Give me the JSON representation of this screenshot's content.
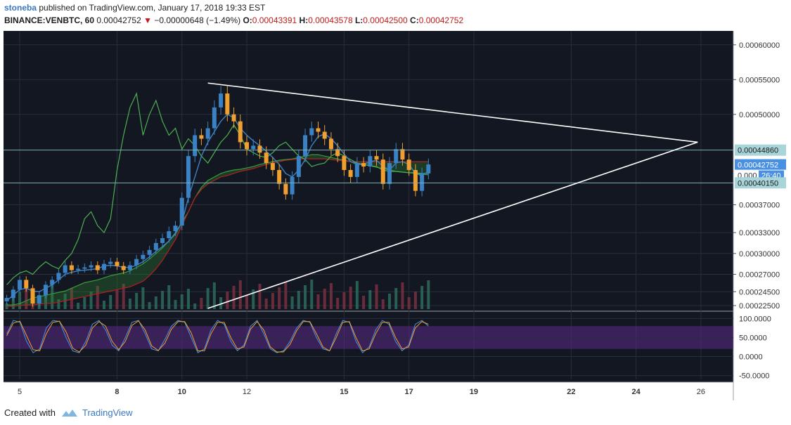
{
  "header": {
    "author": "stoneba",
    "published_text": "published on TradingView.com, January 17, 2018 19:33 EST",
    "symbol": "BINANCE:VENBTC, 60",
    "last": "0.00042752",
    "change": "−0.00000648 (−1.49%)",
    "o_label": "O:",
    "o_value": "0.00043391",
    "h_label": "H:",
    "h_value": "0.00043578",
    "l_label": "L:",
    "l_value": "0.00042500",
    "c_label": "C:",
    "c_value": "0.00042752"
  },
  "footer": {
    "created_with": "Created with",
    "brand": "TradingView"
  },
  "colors": {
    "background": "#131722",
    "grid": "#2a2e39",
    "candle_up": "#3b82c4",
    "candle_down": "#f0a030",
    "cloud_green": "#2e7d32",
    "cloud_red": "#8b1a1a",
    "stoch_band": "#5b2a86",
    "trendline": "#ffffff",
    "hline": "#7fb3b8"
  },
  "chart_data": [
    {
      "type": "candlestick",
      "symbol": "BINANCE:VENBTC",
      "interval": "60",
      "y_axis": {
        "ticks": [
          "0.00060000",
          "0.00055000",
          "0.00050000",
          "0.00037000",
          "0.00033000",
          "0.00030000",
          "0.00027000",
          "0.00024500",
          "0.00022500"
        ],
        "tick_values": [
          0.0006,
          0.00055,
          0.0005,
          0.00037,
          0.00033,
          0.0003,
          0.00027,
          0.000245,
          0.000225
        ],
        "ylim": [
          0.00022,
          0.00062
        ]
      },
      "x_axis": {
        "ticks": [
          "5",
          "8",
          "10",
          "12",
          "15",
          "17",
          "19",
          "22",
          "24",
          "26"
        ],
        "bold_ticks": [
          "8",
          "10",
          "15",
          "17",
          "19",
          "22",
          "24"
        ],
        "xlim": [
          4.5,
          27.0
        ]
      },
      "price_labels": [
        {
          "text": "0.00044860",
          "value": 0.0004486,
          "style": "teal"
        },
        {
          "text": "0.00042752",
          "value": 0.00042752,
          "style": "blue"
        },
        {
          "text": "0.000",
          "countdown": "26:40",
          "value": 0.0004123,
          "style": "dark"
        },
        {
          "text": "0.00040150",
          "value": 0.0004015,
          "style": "teal"
        }
      ],
      "horizontal_lines": [
        0.0004486,
        0.0004015
      ],
      "trendlines": [
        {
          "from": [
            10.8,
            0.000545
          ],
          "to": [
            25.9,
            0.00046
          ]
        },
        {
          "from": [
            10.8,
            0.000221
          ],
          "to": [
            25.9,
            0.00046
          ]
        }
      ],
      "close_series": {
        "x": [
          4.6,
          4.8,
          5.0,
          5.2,
          5.4,
          5.6,
          5.8,
          6.0,
          6.2,
          6.4,
          6.6,
          6.8,
          7.0,
          7.2,
          7.4,
          7.6,
          7.8,
          8.0,
          8.2,
          8.4,
          8.6,
          8.8,
          9.0,
          9.2,
          9.4,
          9.6,
          9.8,
          10.0,
          10.2,
          10.4,
          10.6,
          10.8,
          11.0,
          11.2,
          11.4,
          11.6,
          11.8,
          12.0,
          12.2,
          12.4,
          12.6,
          12.8,
          13.0,
          13.2,
          13.4,
          13.6,
          13.8,
          14.0,
          14.2,
          14.4,
          14.6,
          14.8,
          15.0,
          15.2,
          15.4,
          15.6,
          15.8,
          16.0,
          16.2,
          16.4,
          16.6,
          16.8,
          17.0,
          17.2,
          17.4,
          17.6
        ],
        "close": [
          0.000236,
          0.000248,
          0.000262,
          0.00025,
          0.000228,
          0.00024,
          0.000255,
          0.000262,
          0.000272,
          0.000283,
          0.000276,
          0.000278,
          0.00028,
          0.000283,
          0.000276,
          0.000285,
          0.000288,
          0.000282,
          0.000276,
          0.000283,
          0.000292,
          0.000298,
          0.000305,
          0.000315,
          0.000322,
          0.000332,
          0.00034,
          0.00038,
          0.00044,
          0.00047,
          0.000465,
          0.00048,
          0.00051,
          0.00053,
          0.0005,
          0.00049,
          0.00046,
          0.00045,
          0.000455,
          0.000445,
          0.00043,
          0.00042,
          0.0004,
          0.000385,
          0.00041,
          0.00044,
          0.00047,
          0.00048,
          0.000475,
          0.000465,
          0.00045,
          0.00044,
          0.00042,
          0.00041,
          0.00043,
          0.000425,
          0.00044,
          0.000435,
          0.0004,
          0.00043,
          0.00045,
          0.000435,
          0.00042,
          0.00039,
          0.000415,
          0.000428
        ]
      },
      "conversion_line": [
        0.000232,
        0.00024,
        0.000248,
        0.00025,
        0.000246,
        0.000245,
        0.00025,
        0.000255,
        0.000262,
        0.00027,
        0.000273,
        0.000275,
        0.000276,
        0.000277,
        0.000278,
        0.000282,
        0.000283,
        0.000282,
        0.00028,
        0.00028,
        0.000283,
        0.000288,
        0.000295,
        0.000303,
        0.00031,
        0.000318,
        0.000328,
        0.000345,
        0.00038,
        0.00041,
        0.00044,
        0.00046,
        0.000475,
        0.00049,
        0.0005,
        0.000495,
        0.00048,
        0.00047,
        0.000462,
        0.000455,
        0.000447,
        0.000438,
        0.000428,
        0.000415,
        0.00041,
        0.00042,
        0.000435,
        0.000455,
        0.000468,
        0.000472,
        0.000465,
        0.000455,
        0.000443,
        0.000432,
        0.000428,
        0.000428,
        0.000432,
        0.000434,
        0.000425,
        0.00042,
        0.00043,
        0.000432,
        0.000428,
        0.000415,
        0.000412,
        0.000418
      ],
      "lagging_span": [
        0.000255,
        0.000265,
        0.000272,
        0.000275,
        0.00027,
        0.00028,
        0.000288,
        0.000282,
        0.000278,
        0.00029,
        0.0003,
        0.00032,
        0.00035,
        0.00036,
        0.00034,
        0.00033,
        0.00035,
        0.00042,
        0.00047,
        0.00051,
        0.00053,
        0.00047,
        0.0005,
        0.00052,
        0.00049,
        0.00047,
        0.00048,
        0.00045,
        0.000465,
        0.000455,
        0.00044,
        0.00043,
        0.000445,
        0.00046,
        0.00047,
        0.000485,
        0.00047,
        0.00045,
        0.000445,
        0.00044,
        0.000438,
        0.000445,
        0.000455,
        0.00046,
        0.00045,
        0.00044,
        0.000435,
        0.000425,
        0.000428,
        0.00043,
        0.00044,
        0.000445,
        0.00044,
        0.000435,
        0.00043,
        0.000428,
        0.000426,
        0.000425,
        0.00042,
        0.000418,
        0.000418,
        0.000417,
        0.000416,
        0.000416,
        0.000415,
        0.000415
      ],
      "span_a": [
        0.000226,
        0.000226,
        0.000228,
        0.000232,
        0.000236,
        0.000238,
        0.00024,
        0.000242,
        0.000244,
        0.000246,
        0.00025,
        0.000254,
        0.000258,
        0.00026,
        0.000262,
        0.000265,
        0.000268,
        0.00027,
        0.000272,
        0.000275,
        0.00028,
        0.000285,
        0.000292,
        0.0003,
        0.000308,
        0.000318,
        0.00033,
        0.000345,
        0.00036,
        0.00038,
        0.000395,
        0.000405,
        0.00041,
        0.000415,
        0.000418,
        0.00042,
        0.000421,
        0.000423,
        0.000425,
        0.000428,
        0.00043,
        0.000432,
        0.000434,
        0.000435,
        0.000436,
        0.000438,
        0.00044,
        0.000442,
        0.000442,
        0.00044,
        0.000438,
        0.000436,
        0.000434,
        0.000432,
        0.00043,
        0.000428,
        0.000426,
        0.000424,
        0.000422,
        0.00042,
        0.000418,
        0.000417,
        0.000416,
        0.000415,
        0.000414,
        0.000413
      ],
      "span_b": [
        0.000224,
        0.000224,
        0.000225,
        0.000226,
        0.000226,
        0.000227,
        0.000228,
        0.000228,
        0.00023,
        0.000232,
        0.000234,
        0.000236,
        0.000238,
        0.00024,
        0.000242,
        0.000244,
        0.000246,
        0.000248,
        0.00025,
        0.000252,
        0.000256,
        0.00026,
        0.000268,
        0.000278,
        0.00029,
        0.000305,
        0.00032,
        0.00034,
        0.00036,
        0.00038,
        0.000392,
        0.0004,
        0.000405,
        0.00041,
        0.000412,
        0.000415,
        0.000418,
        0.00042,
        0.000422,
        0.000425,
        0.000428,
        0.00043,
        0.000432,
        0.000434,
        0.000435,
        0.000436,
        0.000436,
        0.000436,
        0.000436,
        0.000436,
        0.000435,
        0.000434,
        0.000433,
        0.000432,
        0.000432,
        0.000432,
        0.000432,
        0.000432,
        0.000432,
        0.000432,
        0.000432,
        0.000432,
        0.000432,
        0.000432,
        0.000432,
        0.000432
      ],
      "volume_max_fraction": 1.0
    },
    {
      "type": "line",
      "indicator": "stochastic",
      "y_axis": {
        "ticks": [
          "100.0000",
          "50.0000",
          "0.0000",
          "-50.0000"
        ],
        "tick_values": [
          100,
          50,
          0,
          -50
        ],
        "ylim": [
          -60,
          110
        ]
      },
      "band": [
        20,
        80
      ],
      "series": [
        {
          "values": [
            60,
            95,
            90,
            40,
            10,
            20,
            75,
            95,
            92,
            50,
            15,
            10,
            40,
            85,
            95,
            70,
            30,
            15,
            50,
            90,
            95,
            60,
            20,
            15,
            45,
            80,
            95,
            90,
            50,
            10,
            20,
            70,
            95,
            85,
            40,
            15,
            30,
            80,
            95,
            60,
            20,
            10,
            15,
            40,
            75,
            95,
            90,
            50,
            20,
            15,
            60,
            95,
            90,
            40,
            10,
            25,
            70,
            95,
            85,
            40,
            15,
            30,
            85,
            95,
            80
          ]
        },
        {
          "values": [
            55,
            88,
            93,
            55,
            18,
            15,
            60,
            90,
            93,
            65,
            22,
            12,
            30,
            75,
            92,
            80,
            40,
            18,
            40,
            82,
            94,
            70,
            28,
            16,
            35,
            72,
            92,
            92,
            62,
            15,
            15,
            60,
            90,
            90,
            50,
            20,
            25,
            72,
            92,
            70,
            25,
            12,
            12,
            32,
            68,
            92,
            92,
            60,
            25,
            15,
            50,
            90,
            92,
            50,
            15,
            20,
            60,
            90,
            90,
            50,
            20,
            25,
            75,
            92,
            85
          ]
        }
      ]
    }
  ]
}
